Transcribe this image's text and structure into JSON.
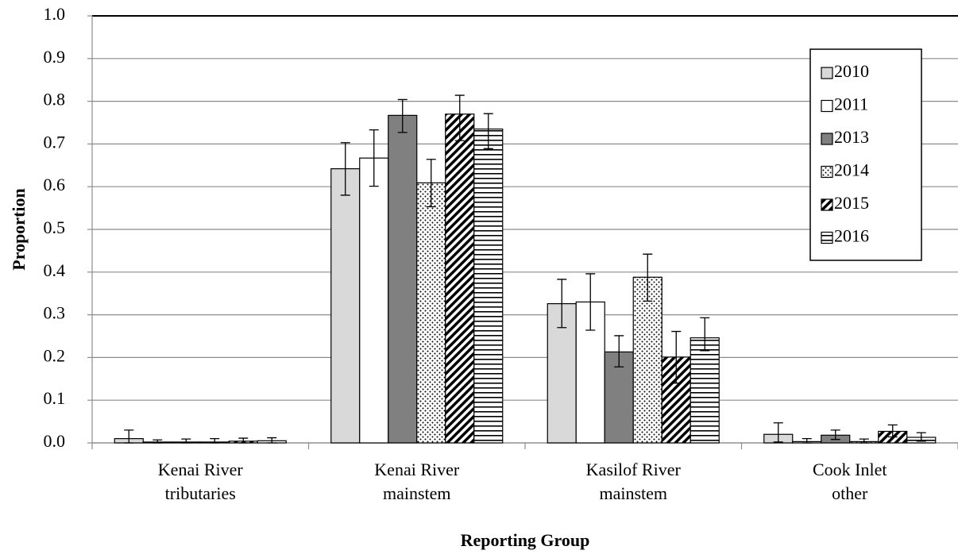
{
  "chart_data": {
    "type": "bar",
    "xlabel": "Reporting Group",
    "ylabel": "Proportion",
    "categories": [
      "Kenai River\ntributaries",
      "Kenai River\nmainstem",
      "Kasilof River\nmainstem",
      "Cook Inlet\nother"
    ],
    "series": [
      {
        "name": "2010",
        "color": "#d9d9d9",
        "pattern": "solid",
        "values": [
          0.01,
          0.642,
          0.326,
          0.02
        ],
        "lower": [
          0,
          0.58,
          0.27,
          0.002
        ],
        "upper": [
          0.03,
          0.703,
          0.383,
          0.047
        ]
      },
      {
        "name": "2011",
        "color": "#ffffff",
        "pattern": "solid",
        "values": [
          0.002,
          0.667,
          0.33,
          0.003
        ],
        "lower": [
          0,
          0.601,
          0.264,
          0
        ],
        "upper": [
          0.007,
          0.733,
          0.396,
          0.01
        ]
      },
      {
        "name": "2013",
        "color": "#808080",
        "pattern": "solid",
        "values": [
          0.002,
          0.767,
          0.213,
          0.018
        ],
        "lower": [
          0,
          0.727,
          0.178,
          0.008
        ],
        "upper": [
          0.009,
          0.804,
          0.251,
          0.03
        ]
      },
      {
        "name": "2014",
        "color": "#000000",
        "pattern": "dots",
        "values": [
          0.002,
          0.609,
          0.388,
          0.003
        ],
        "lower": [
          0,
          0.553,
          0.332,
          0
        ],
        "upper": [
          0.01,
          0.664,
          0.442,
          0.009
        ]
      },
      {
        "name": "2015",
        "color": "#000000",
        "pattern": "diagonal",
        "values": [
          0.004,
          0.77,
          0.201,
          0.027
        ],
        "lower": [
          0,
          0.708,
          0.14,
          0.014
        ],
        "upper": [
          0.011,
          0.814,
          0.261,
          0.042
        ]
      },
      {
        "name": "2016",
        "color": "#000000",
        "pattern": "horizontal",
        "values": [
          0.005,
          0.735,
          0.246,
          0.013
        ],
        "lower": [
          0,
          0.689,
          0.216,
          0.004
        ],
        "upper": [
          0.012,
          0.771,
          0.293,
          0.024
        ]
      }
    ],
    "ylim": [
      0,
      1
    ],
    "yticks": [
      {
        "value": 0,
        "label": "0.0"
      },
      0.1,
      0.2,
      0.3,
      0.4,
      0.5,
      0.6,
      0.7,
      0.8,
      0.9,
      {
        "value": 1,
        "label": "1.0"
      }
    ],
    "grid": true,
    "legend": "top-right"
  }
}
